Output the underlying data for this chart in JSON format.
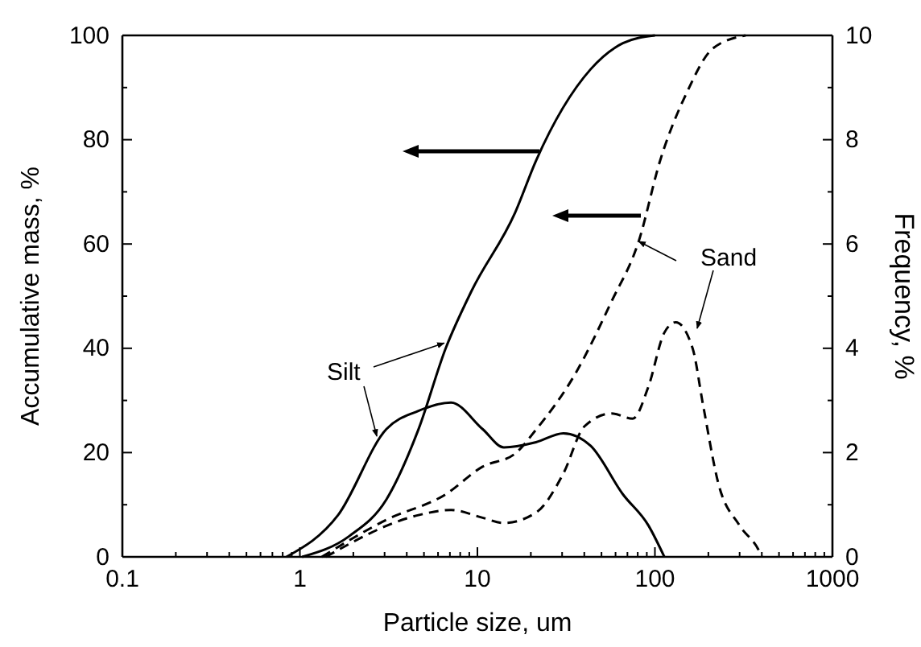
{
  "chart_data": {
    "type": "line",
    "xlabel": "Particle size, um",
    "ylabel": "Accumulative mass, %",
    "y2label": "Frequency, %",
    "log": "x",
    "xlim": [
      0.1,
      1000
    ],
    "xticks": [
      {
        "value": 0.1,
        "label": "0.1"
      },
      {
        "value": 0.2,
        "label": null
      },
      {
        "value": 0.3,
        "label": null
      },
      {
        "value": 0.4,
        "label": null
      },
      {
        "value": 0.5,
        "label": null
      },
      {
        "value": 0.6,
        "label": null
      },
      {
        "value": 0.7,
        "label": null
      },
      {
        "value": 0.8,
        "label": null
      },
      {
        "value": 0.9,
        "label": null
      },
      1,
      {
        "value": 2,
        "label": null
      },
      {
        "value": 3,
        "label": null
      },
      {
        "value": 4,
        "label": null
      },
      {
        "value": 5,
        "label": null
      },
      {
        "value": 6,
        "label": null
      },
      {
        "value": 7,
        "label": null
      },
      {
        "value": 8,
        "label": null
      },
      {
        "value": 9,
        "label": null
      },
      10,
      {
        "value": 20,
        "label": null
      },
      {
        "value": 30,
        "label": null
      },
      {
        "value": 40,
        "label": null
      },
      {
        "value": 50,
        "label": null
      },
      {
        "value": 60,
        "label": null
      },
      {
        "value": 70,
        "label": null
      },
      {
        "value": 80,
        "label": null
      },
      {
        "value": 90,
        "label": null
      },
      100,
      {
        "value": 200,
        "label": null
      },
      {
        "value": 300,
        "label": null
      },
      {
        "value": 400,
        "label": null
      },
      {
        "value": 500,
        "label": null
      },
      {
        "value": 600,
        "label": null
      },
      {
        "value": 700,
        "label": null
      },
      {
        "value": 800,
        "label": null
      },
      {
        "value": 900,
        "label": null
      },
      1000
    ],
    "ylim": [
      0,
      100
    ],
    "yticks": [
      0,
      {
        "value": 10,
        "label": null
      },
      20,
      {
        "value": 30,
        "label": null
      },
      40,
      {
        "value": 50,
        "label": null
      },
      60,
      {
        "value": 70,
        "label": null
      },
      80,
      {
        "value": 90,
        "label": null
      },
      100
    ],
    "y2lim": [
      0,
      10
    ],
    "y2ticks": [
      0,
      {
        "value": 1,
        "label": null
      },
      2,
      {
        "value": 3,
        "label": null
      },
      4,
      {
        "value": 5,
        "label": null
      },
      6,
      {
        "value": 7,
        "label": null
      },
      8,
      {
        "value": 9,
        "label": null
      },
      10
    ],
    "grid": false,
    "marker": "none",
    "annotations": [
      {
        "text": "Silt",
        "x": 6.5,
        "y": 41
      },
      {
        "text": "Sand",
        "x": 81,
        "y": 60.5
      }
    ],
    "series": [
      {
        "color": "#000000",
        "line_style": "solid",
        "x": [
          1.03,
          1.9,
          3.07,
          4.65,
          6.63,
          9.27,
          16.3,
          21.4,
          43.4,
          66,
          100
        ],
        "values": [
          0,
          4,
          11,
          24.4,
          40,
          51,
          66,
          76,
          93.5,
          98.5,
          100
        ]
      },
      {
        "color": "#000000",
        "line_style": "solid",
        "axis": "y2",
        "x": [
          0.84,
          1.64,
          3.07,
          4.65,
          7.1,
          10.7,
          14.1,
          21.4,
          30.5,
          43.4,
          66,
          92,
          113
        ],
        "values": [
          0,
          0.8,
          2.45,
          2.8,
          2.96,
          2.45,
          2.1,
          2.2,
          2.37,
          2.13,
          1.2,
          0.6,
          0
        ]
      },
      {
        "color": "#000000",
        "line_style": "dashed",
        "x": [
          1.33,
          3.07,
          6.63,
          10.7,
          16.3,
          21.4,
          35.3,
          57,
          81,
          107,
          151,
          212,
          324
        ],
        "values": [
          0,
          7.1,
          12,
          17.3,
          19.8,
          24.4,
          34.9,
          49,
          60.5,
          76,
          89,
          97.5,
          100
        ]
      },
      {
        "color": "#000000",
        "line_style": "dashed",
        "axis": "y2",
        "x": [
          1.4,
          4.65,
          7.1,
          10.7,
          14.1,
          21.4,
          30.5,
          40,
          57,
          75,
          92,
          113,
          131,
          163,
          187,
          228,
          300,
          388,
          400
        ],
        "values": [
          0,
          0.8,
          0.9,
          0.75,
          0.65,
          0.85,
          1.6,
          2.5,
          2.75,
          2.65,
          3.27,
          4.3,
          4.5,
          4.0,
          2.9,
          1.4,
          0.6,
          0.1,
          0
        ]
      }
    ]
  }
}
